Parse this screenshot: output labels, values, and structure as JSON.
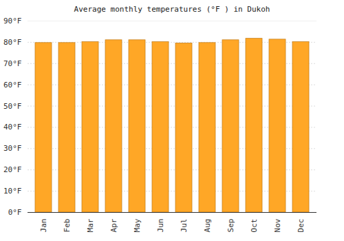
{
  "chart_data": {
    "type": "bar",
    "title": "Average monthly temperatures (°F ) in Dukoh",
    "categories": [
      "Jan",
      "Feb",
      "Mar",
      "Apr",
      "May",
      "Jun",
      "Jul",
      "Aug",
      "Sep",
      "Oct",
      "Nov",
      "Dec"
    ],
    "values": [
      79.7,
      79.7,
      80.1,
      81.0,
      81.0,
      80.1,
      79.5,
      79.7,
      81.0,
      81.7,
      81.3,
      80.1
    ],
    "color": "#ffa726",
    "ylim": [
      0,
      90
    ],
    "yticks": [
      {
        "value": 0,
        "label": "0°F"
      },
      {
        "value": 10,
        "label": "10°F"
      },
      {
        "value": 20,
        "label": "20°F"
      },
      {
        "value": 30,
        "label": "30°F"
      },
      {
        "value": 40,
        "label": "40°F"
      },
      {
        "value": 50,
        "label": "50°F"
      },
      {
        "value": 60,
        "label": "60°F"
      },
      {
        "value": 70,
        "label": "70°F"
      },
      {
        "value": 80,
        "label": "80°F"
      },
      {
        "value": 90,
        "label": "90°F"
      }
    ],
    "grid": true
  }
}
